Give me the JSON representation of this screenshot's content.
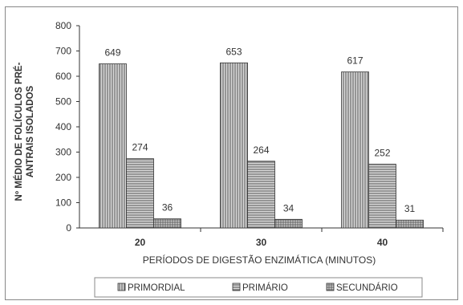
{
  "chart_data": {
    "type": "bar",
    "title": "",
    "xlabel": "PERÍODOS DE DIGESTÃO ENZIMÁTICA (MINUTOS)",
    "ylabel_lines": [
      "Nº MÉDIO DE FOLÍCULOS PRÉ-",
      "ANTRAIS ISOLADOS"
    ],
    "ylim": [
      0,
      800
    ],
    "yticks": [
      0,
      100,
      200,
      300,
      400,
      500,
      600,
      700,
      800
    ],
    "categories": [
      "20",
      "30",
      "40"
    ],
    "series": [
      {
        "name": "PRIMORDIAL",
        "values": [
          649,
          653,
          617
        ]
      },
      {
        "name": "PRIMÁRIO",
        "values": [
          274,
          264,
          252
        ]
      },
      {
        "name": "SECUNDÁRIO",
        "values": [
          36,
          34,
          31
        ]
      }
    ],
    "grid": false,
    "legend_position": "bottom"
  }
}
